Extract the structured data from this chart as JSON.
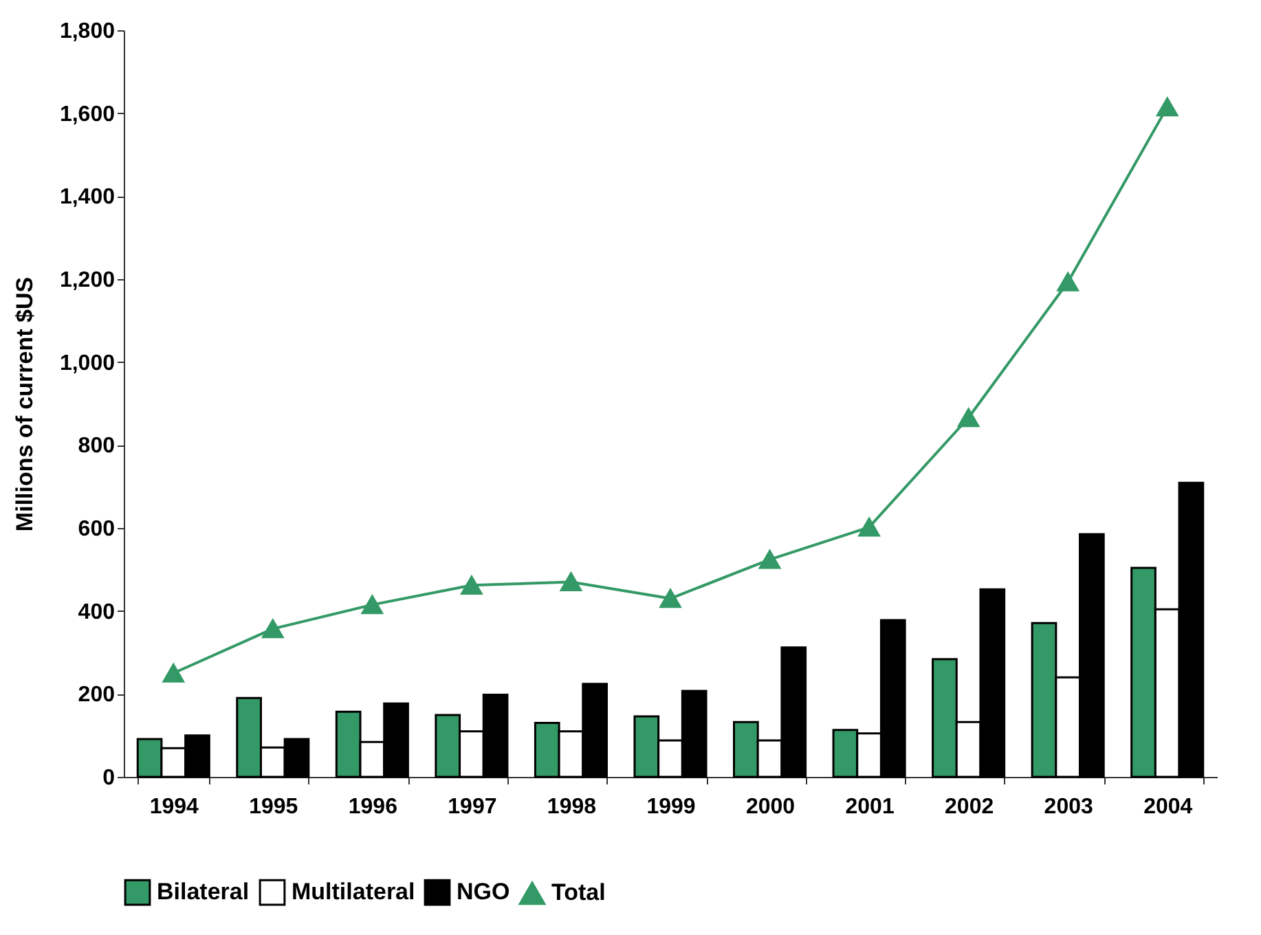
{
  "chart_data": {
    "type": "bar",
    "ylabel": "Millions of current $US",
    "categories": [
      "1994",
      "1995",
      "1996",
      "1997",
      "1998",
      "1999",
      "2000",
      "2001",
      "2002",
      "2003",
      "2004"
    ],
    "series": [
      {
        "name": "Bilateral",
        "color": "#339966",
        "values": [
          91,
          190,
          157,
          149,
          130,
          146,
          132,
          113,
          284,
          371,
          504
        ]
      },
      {
        "name": "Multilateral",
        "color": "#ffffff",
        "values": [
          69,
          71,
          84,
          110,
          110,
          88,
          88,
          105,
          132,
          240,
          404
        ]
      },
      {
        "name": "NGO",
        "color": "#000000",
        "values": [
          100,
          91,
          177,
          198,
          224,
          207,
          312,
          378,
          452,
          585,
          709
        ]
      },
      {
        "name": "Total",
        "type": "line",
        "color": "#339966",
        "marker": "triangle",
        "values": [
          250,
          357,
          415,
          462,
          470,
          430,
          524,
          602,
          866,
          1193,
          1615
        ]
      }
    ],
    "ylim": [
      0,
      1800
    ],
    "yticks": [
      0,
      200,
      400,
      600,
      800,
      {
        "value": 1000,
        "label": "1,000"
      },
      {
        "value": 1200,
        "label": "1,200"
      },
      {
        "value": 1400,
        "label": "1,400"
      },
      {
        "value": 1600,
        "label": "1,600"
      },
      {
        "value": 1800,
        "label": "1,800"
      }
    ],
    "grid": false,
    "legend": "bottom"
  }
}
